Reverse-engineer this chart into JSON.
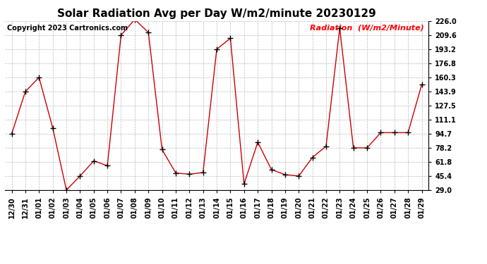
{
  "title": "Solar Radiation Avg per Day W/m2/minute 20230129",
  "copyright": "Copyright 2023 Cartronics.com",
  "legend_label": "Radiation  (W/m2/Minute)",
  "labels": [
    "12/30",
    "12/31",
    "01/01",
    "01/02",
    "01/03",
    "01/04",
    "01/05",
    "01/06",
    "01/07",
    "01/08",
    "01/09",
    "01/10",
    "01/11",
    "01/12",
    "01/13",
    "01/14",
    "01/15",
    "01/16",
    "01/17",
    "01/18",
    "01/19",
    "01/20",
    "01/21",
    "01/22",
    "01/23",
    "01/24",
    "01/25",
    "01/26",
    "01/27",
    "01/28",
    "01/29"
  ],
  "values": [
    94.7,
    143.9,
    160.3,
    101.5,
    29.0,
    45.4,
    63.0,
    57.5,
    209.6,
    228.0,
    212.8,
    76.2,
    49.0,
    47.5,
    49.5,
    193.2,
    206.0,
    36.0,
    84.8,
    53.0,
    47.0,
    45.4,
    67.0,
    80.2,
    218.0,
    78.2,
    78.2,
    96.0,
    96.0,
    96.0,
    152.0
  ],
  "line_color": "#cc0000",
  "marker": "+",
  "marker_color": "#000000",
  "bg_color": "#ffffff",
  "grid_color": "#bbbbbb",
  "ylim": [
    29.0,
    226.0
  ],
  "yticks": [
    29.0,
    45.4,
    61.8,
    78.2,
    94.7,
    111.1,
    127.5,
    143.9,
    160.3,
    176.8,
    193.2,
    209.6,
    226.0
  ],
  "title_fontsize": 11,
  "copyright_fontsize": 7,
  "legend_fontsize": 8,
  "tick_fontsize": 7,
  "line_width": 1.0,
  "marker_size": 30
}
